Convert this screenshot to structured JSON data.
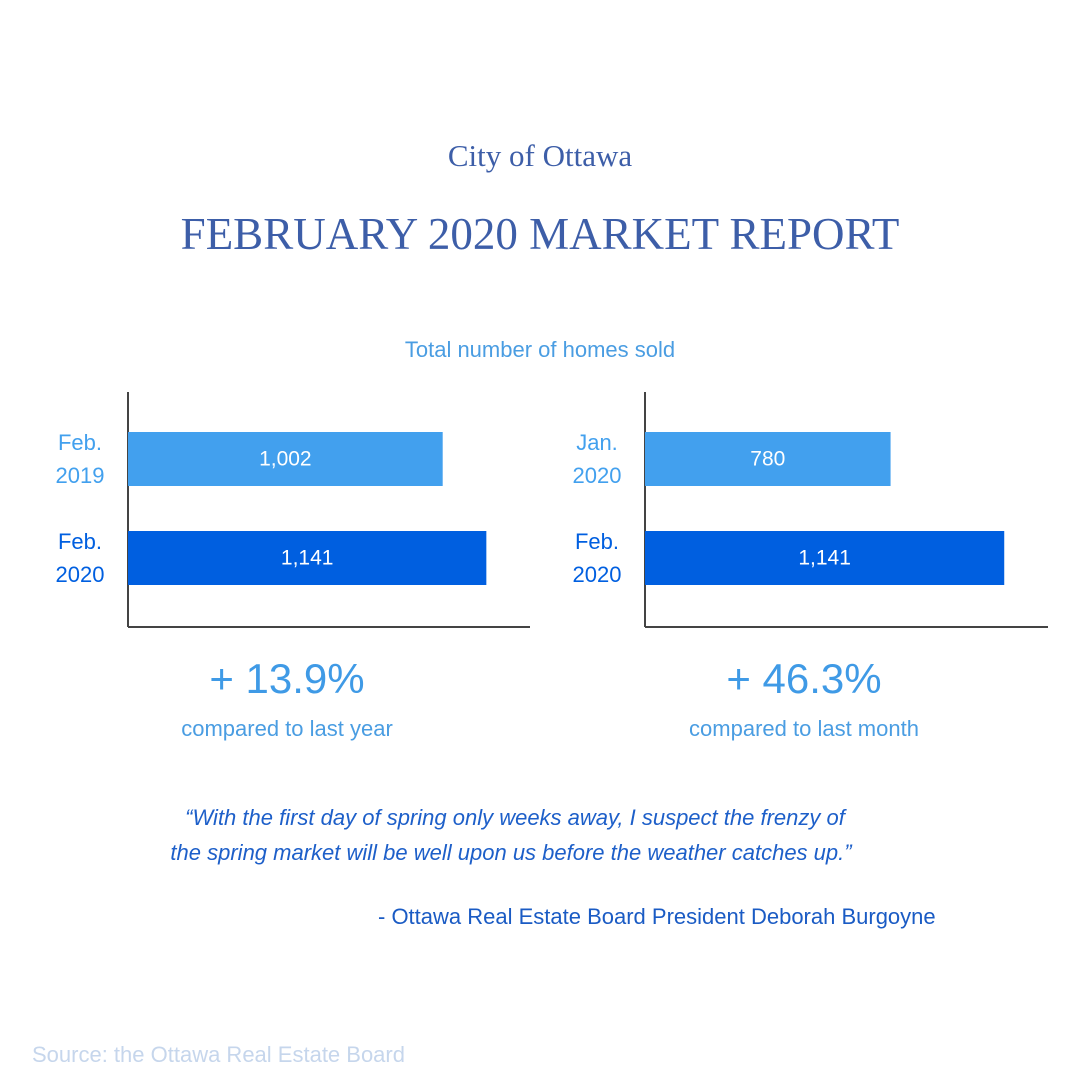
{
  "header": {
    "city": "City of Ottawa",
    "title": "FEBRUARY 2020 MARKET REPORT"
  },
  "subtitle": "Total number of homes sold",
  "chart_data": [
    {
      "type": "bar",
      "orientation": "horizontal",
      "categories": [
        "Feb. 2019",
        "Feb. 2020"
      ],
      "values": [
        1002,
        1141
      ],
      "value_labels": [
        "1,002",
        "1,141"
      ],
      "colors": [
        "#42a0ee",
        "#005fe0"
      ],
      "xlim": [
        0,
        1280
      ]
    },
    {
      "type": "bar",
      "orientation": "horizontal",
      "categories": [
        "Jan. 2020",
        "Feb. 2020"
      ],
      "values": [
        780,
        1141
      ],
      "value_labels": [
        "780",
        "1,141"
      ],
      "colors": [
        "#42a0ee",
        "#005fe0"
      ],
      "xlim": [
        0,
        1280
      ]
    }
  ],
  "stats": [
    {
      "change": "+ 13.9%",
      "label": "compared to last year"
    },
    {
      "change": "+ 46.3%",
      "label": "compared to last month"
    }
  ],
  "quote": [
    "“With the first day of spring only weeks away, I suspect the frenzy of",
    "the spring market will be well upon us before the weather catches up.”"
  ],
  "attribution": "-  Ottawa Real Estate Board President Deborah Burgoyne",
  "source": "Source: the Ottawa Real Estate Board"
}
